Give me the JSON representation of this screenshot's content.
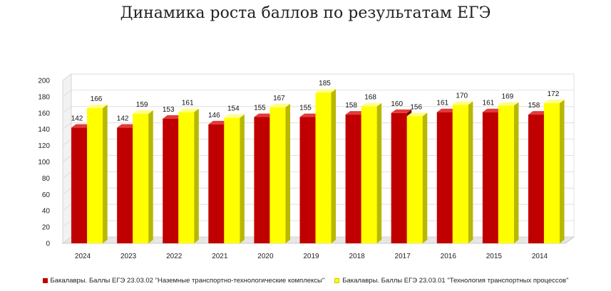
{
  "chart_data": {
    "type": "bar",
    "title": "Динамика роста баллов по результатам ЕГЭ",
    "categories": [
      "2024",
      "2023",
      "2022",
      "2021",
      "2020",
      "2019",
      "2018",
      "2017",
      "2016",
      "2015",
      "2014"
    ],
    "series": [
      {
        "name": "Бакалавры. Баллы ЕГЭ 23.03.02 \"Наземные транспортно-технологические комплексы\"",
        "color": "#C00000",
        "values": [
          142,
          142,
          153,
          146,
          155,
          155,
          158,
          160,
          161,
          161,
          158
        ]
      },
      {
        "name": "Бакалавры. Баллы ЕГЭ 23.03.01 \"Технология транспортных процессов\"",
        "color": "#FFFF00",
        "values": [
          166,
          159,
          161,
          154,
          167,
          185,
          168,
          156,
          170,
          169,
          172
        ]
      }
    ],
    "ylim": [
      0,
      200
    ],
    "yticks": [
      0,
      20,
      40,
      60,
      80,
      100,
      120,
      140,
      160,
      180,
      200
    ],
    "xlabel": "",
    "ylabel": "",
    "grid": true,
    "legend_position": "bottom"
  }
}
